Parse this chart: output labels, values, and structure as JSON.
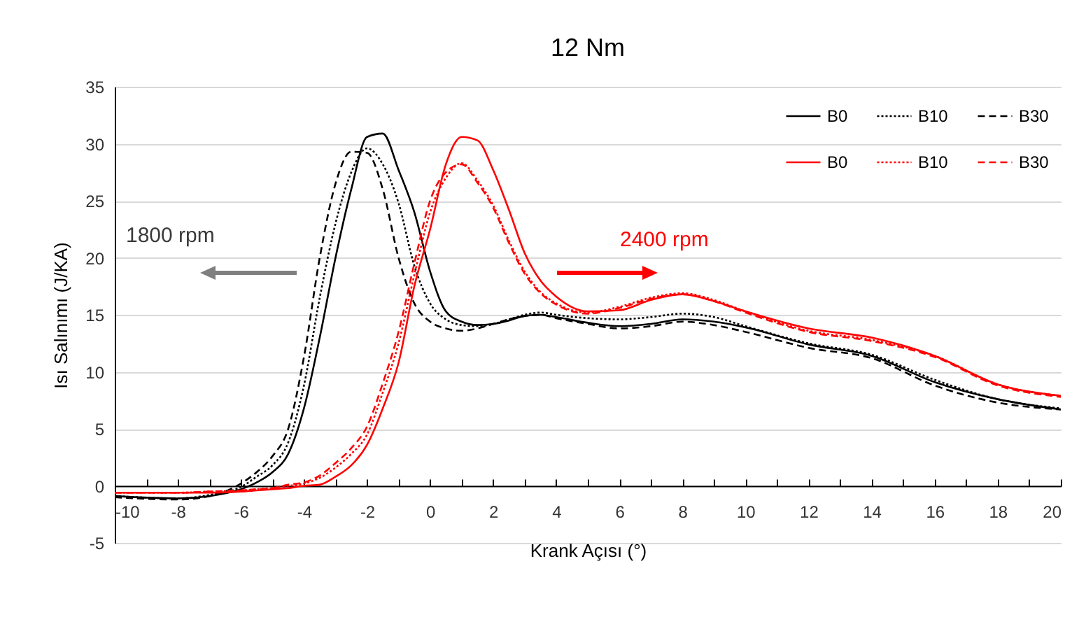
{
  "chart_data": {
    "type": "line",
    "title": "12 Nm",
    "xlabel": "Krank Açısı (°)",
    "ylabel": "Isı Salınımı (J/KA)",
    "annotations": [
      "1800 rpm",
      "2400 rpm"
    ],
    "x": [
      -10,
      -8,
      -7,
      -6,
      -5.5,
      -5,
      -4.5,
      -4,
      -3.5,
      -3,
      -2.5,
      -2,
      -1.5,
      -1,
      -0.5,
      0,
      0.5,
      1,
      1.5,
      2,
      2.5,
      3,
      3.5,
      4,
      5,
      6,
      7,
      8,
      9,
      10,
      12,
      14,
      16,
      18,
      20
    ],
    "series": [
      {
        "name": "B0",
        "color": "#000000",
        "line_style": "solid",
        "values": [
          -0.9,
          -1.1,
          -0.9,
          -0.3,
          0.3,
          1.2,
          2.8,
          6.8,
          13,
          20,
          26,
          30.6,
          30.9,
          27.7,
          24,
          18.8,
          15.3,
          14.4,
          14.1,
          14.2,
          14.5,
          14.9,
          15.0,
          14.8,
          14.3,
          14.0,
          14.2,
          14.6,
          14.4,
          13.9,
          12.4,
          11.4,
          9.1,
          7.6,
          6.7
        ]
      },
      {
        "name": "B10",
        "color": "#000000",
        "line_style": "dotted",
        "values": [
          -0.9,
          -1.1,
          -0.8,
          -0.1,
          0.8,
          1.8,
          3.8,
          8.8,
          16.5,
          23,
          27.5,
          29.6,
          28.2,
          24.8,
          19.3,
          16.0,
          14.6,
          14.1,
          14.0,
          14.2,
          14.6,
          15.0,
          15.2,
          15.0,
          14.7,
          14.6,
          14.8,
          15.1,
          14.8,
          14.0,
          12.5,
          11.5,
          9.3,
          7.6,
          6.8
        ]
      },
      {
        "name": "B30",
        "color": "#000000",
        "line_style": "dashed",
        "values": [
          -1.0,
          -1.2,
          -0.9,
          0.2,
          1.2,
          2.6,
          5.0,
          11.3,
          20,
          26.5,
          29.3,
          29.2,
          26.0,
          20.0,
          16.0,
          14.4,
          13.8,
          13.6,
          13.8,
          14.2,
          14.6,
          14.9,
          15.0,
          14.7,
          14.2,
          13.8,
          14.0,
          14.4,
          14.1,
          13.5,
          12.1,
          11.2,
          8.8,
          7.3,
          6.7
        ]
      },
      {
        "name": "B0",
        "color": "#ff0000",
        "line_style": "solid",
        "values": [
          -0.6,
          -0.6,
          -0.6,
          -0.5,
          -0.4,
          -0.3,
          -0.2,
          0,
          0.1,
          0.8,
          1.8,
          3.6,
          6.8,
          10.8,
          17.5,
          22.5,
          28.2,
          30.6,
          30.3,
          27.7,
          24.2,
          20.4,
          18.0,
          16.6,
          15.3,
          15.4,
          16.3,
          16.8,
          16.2,
          15.3,
          13.8,
          13.0,
          11.4,
          8.9,
          7.9
        ]
      },
      {
        "name": "B10",
        "color": "#ff0000",
        "line_style": "dotted",
        "values": [
          -0.6,
          -0.6,
          -0.5,
          -0.4,
          -0.3,
          -0.2,
          0,
          0.2,
          0.7,
          1.6,
          2.8,
          4.5,
          8.2,
          12.5,
          18.5,
          24.0,
          27.0,
          28.3,
          26.8,
          24.6,
          21.5,
          18.8,
          17.0,
          16.0,
          15.2,
          15.7,
          16.5,
          16.9,
          16.3,
          15.3,
          13.6,
          12.8,
          11.4,
          8.9,
          7.9
        ]
      },
      {
        "name": "B30",
        "color": "#ff0000",
        "line_style": "dashed",
        "values": [
          -0.6,
          -0.6,
          -0.5,
          -0.4,
          -0.3,
          -0.2,
          0.1,
          0.3,
          0.9,
          2.0,
          3.3,
          5.2,
          9.0,
          13.5,
          19.5,
          25.0,
          27.5,
          28.2,
          26.6,
          24.4,
          21.3,
          18.6,
          16.9,
          15.9,
          15.1,
          15.6,
          16.4,
          16.8,
          16.2,
          15.2,
          13.5,
          12.7,
          11.3,
          8.8,
          7.8
        ]
      }
    ],
    "xlim": [
      -10,
      20
    ],
    "xticks": [
      -10,
      {
        "value": -9,
        "label": null
      },
      -8,
      {
        "value": -7,
        "label": null
      },
      -6,
      {
        "value": -5,
        "label": null
      },
      -4,
      {
        "value": -3,
        "label": null
      },
      -2,
      {
        "value": -1,
        "label": null
      },
      0,
      {
        "value": 1,
        "label": null
      },
      2,
      {
        "value": 3,
        "label": null
      },
      4,
      {
        "value": 5,
        "label": null
      },
      6,
      {
        "value": 7,
        "label": null
      },
      8,
      {
        "value": 9,
        "label": null
      },
      10,
      {
        "value": 11,
        "label": null
      },
      12,
      {
        "value": 13,
        "label": null
      },
      14,
      {
        "value": 15,
        "label": null
      },
      16,
      {
        "value": 17,
        "label": null
      },
      18,
      {
        "value": 19,
        "label": null
      },
      20
    ],
    "ylim": [
      -5,
      35
    ],
    "yticks": [
      -5,
      0,
      5,
      10,
      15,
      20,
      25,
      30,
      35
    ],
    "grid": "y",
    "legend": "top right"
  }
}
